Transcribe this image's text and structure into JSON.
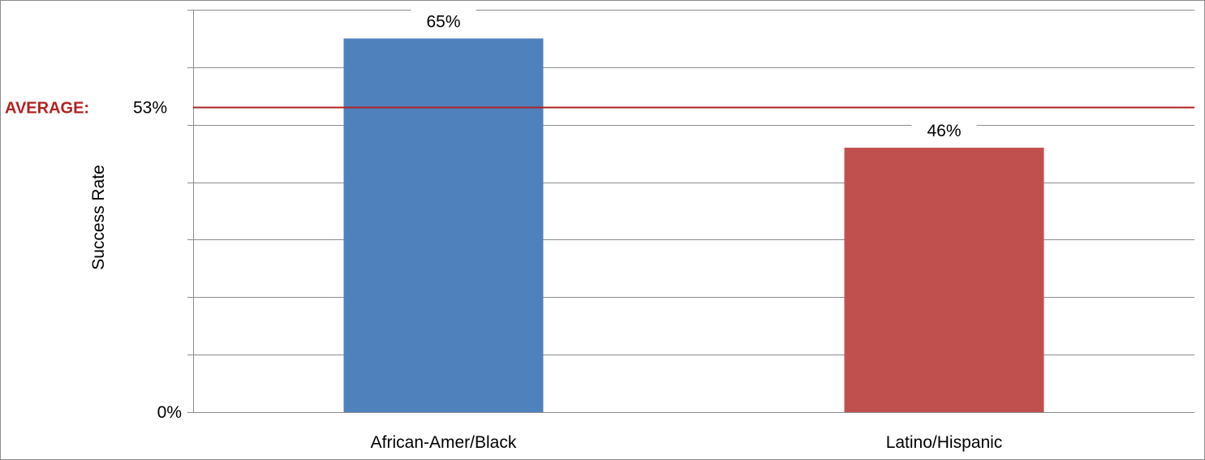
{
  "chart_data": {
    "type": "bar",
    "categories": [
      "African-Amer/Black",
      "Latino/Hispanic"
    ],
    "values": [
      65,
      46
    ],
    "value_labels": [
      "65%",
      "46%"
    ],
    "bar_colors": [
      "#4F81BD",
      "#C0504D"
    ],
    "ylabel": "Success Rate",
    "y_tick_labels": {
      "0": "0%"
    },
    "ylim": [
      0,
      70
    ],
    "y_gridline_step": 10,
    "grid": true,
    "reference_line": {
      "label": "AVERAGE:",
      "value": 53,
      "value_label": "53%",
      "color": "#B22222"
    }
  }
}
